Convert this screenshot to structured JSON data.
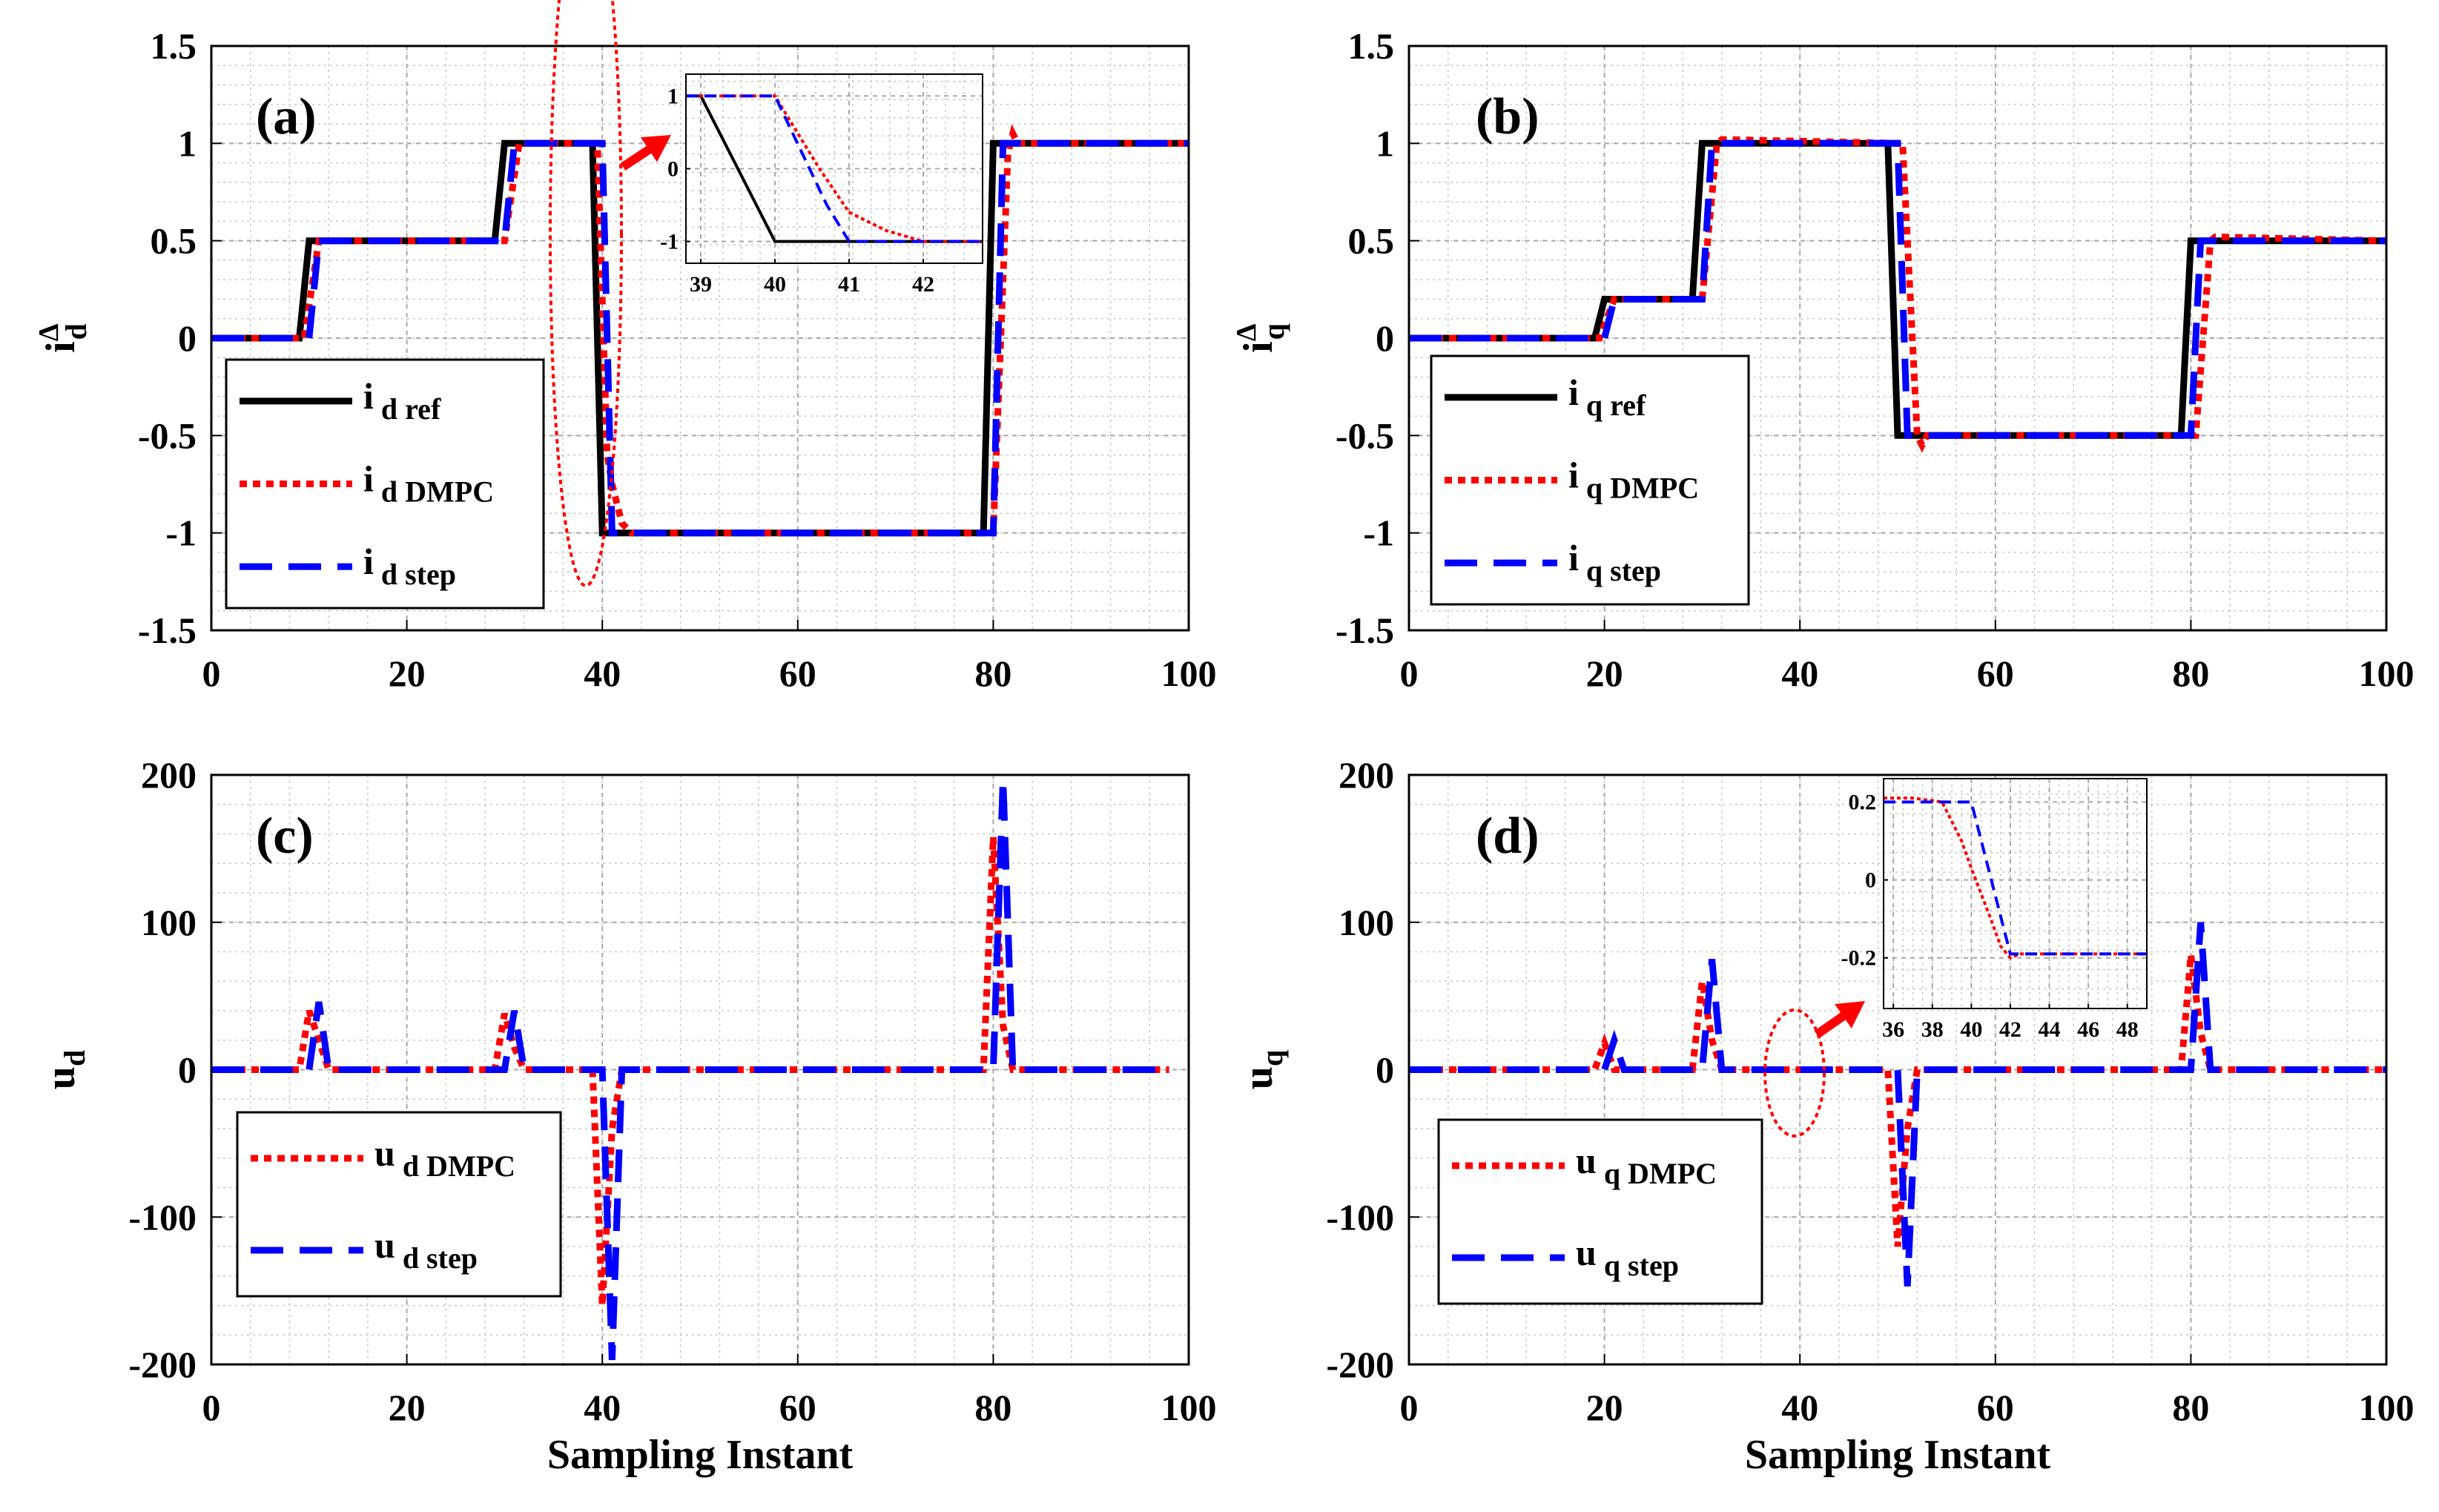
{
  "colors": {
    "ref": "#000000",
    "dmpc": "#ff0000",
    "step": "#0000ff",
    "arrow": "#ff0000"
  },
  "chart_data": [
    {
      "id": "a",
      "type": "line",
      "panel_label": "(a)",
      "xlabel": "",
      "ylabel": "i",
      "ylabel_sub": "d",
      "ylabel_sup": "Δ",
      "xlim": [
        0,
        100
      ],
      "ylim": [
        -1.5,
        1.5
      ],
      "xticks": [
        "0",
        "20",
        "40",
        "60",
        "80",
        "100"
      ],
      "yticks": [
        "-1.5",
        "-1",
        "-0.5",
        "0",
        "0.5",
        "1",
        "1.5"
      ],
      "legend": {
        "position": "bottom-left",
        "entries": [
          {
            "main": "i",
            "sub": "d ref",
            "series": "ref"
          },
          {
            "main": "i",
            "sub": "d DMPC",
            "series": "dmpc"
          },
          {
            "main": "i",
            "sub": "d step",
            "series": "step"
          }
        ]
      },
      "series": [
        {
          "name": "i_d ref",
          "style": "ref",
          "x": [
            0,
            9,
            10,
            29,
            30,
            39,
            40,
            79,
            80,
            100
          ],
          "y": [
            0,
            0,
            0.5,
            0.5,
            1,
            1,
            -1,
            -1,
            1,
            1
          ]
        },
        {
          "name": "i_d DMPC",
          "style": "dmpc",
          "x": [
            0,
            9.5,
            11,
            30,
            31.5,
            39.5,
            40.5,
            41,
            42,
            43,
            80,
            81.5,
            82,
            82.5,
            100
          ],
          "y": [
            0,
            0,
            0.5,
            0.5,
            1,
            1,
            -0.6,
            -0.75,
            -0.95,
            -1,
            -1,
            0.95,
            1.05,
            1,
            1
          ]
        },
        {
          "name": "i_d step",
          "style": "step",
          "x": [
            0,
            10,
            11,
            30,
            31,
            40,
            41,
            80,
            81,
            100
          ],
          "y": [
            0,
            0,
            0.5,
            0.5,
            1,
            1,
            -1,
            -1,
            1,
            1
          ]
        }
      ],
      "inset": {
        "xlim": [
          38.8,
          42.8
        ],
        "ylim": [
          -1.3,
          1.3
        ],
        "xticks": [
          "39",
          "40",
          "41",
          "42"
        ],
        "yticks": [
          "-1",
          "0",
          "1"
        ],
        "series": [
          {
            "name": "i_d ref",
            "style": "ref",
            "x": [
              38.8,
              39,
              40,
              42.8
            ],
            "y": [
              1,
              1,
              -1,
              -1
            ]
          },
          {
            "name": "i_d DMPC",
            "style": "dmpc",
            "x": [
              38.8,
              40,
              40.6,
              41,
              41.5,
              42,
              42.8
            ],
            "y": [
              1,
              1,
              0,
              -0.6,
              -0.85,
              -1,
              -1
            ]
          },
          {
            "name": "i_d step",
            "style": "step",
            "x": [
              38.8,
              40,
              40.7,
              41,
              42.8
            ],
            "y": [
              1,
              1,
              -0.5,
              -1,
              -1
            ]
          }
        ]
      }
    },
    {
      "id": "b",
      "type": "line",
      "panel_label": "(b)",
      "xlabel": "",
      "ylabel": "i",
      "ylabel_sub": "q",
      "ylabel_sup": "Δ",
      "xlim": [
        0,
        100
      ],
      "ylim": [
        -1.5,
        1.5
      ],
      "xticks": [
        "0",
        "20",
        "40",
        "60",
        "80",
        "100"
      ],
      "yticks": [
        "-1.5",
        "-1",
        "-0.5",
        "0",
        "0.5",
        "1",
        "1.5"
      ],
      "legend": {
        "position": "bottom-left",
        "entries": [
          {
            "main": "i",
            "sub": "q ref",
            "series": "ref"
          },
          {
            "main": "i",
            "sub": "q DMPC",
            "series": "dmpc"
          },
          {
            "main": "i",
            "sub": "q step",
            "series": "step"
          }
        ]
      },
      "series": [
        {
          "name": "i_q ref",
          "style": "ref",
          "x": [
            0,
            19,
            20,
            29,
            30,
            49,
            50,
            79,
            80,
            100
          ],
          "y": [
            0,
            0,
            0.2,
            0.2,
            1,
            1,
            -0.5,
            -0.5,
            0.5,
            0.5
          ]
        },
        {
          "name": "i_q DMPC",
          "style": "dmpc",
          "x": [
            0,
            19.5,
            21,
            30,
            31.5,
            32,
            50.5,
            52,
            52.5,
            53,
            80.5,
            82,
            82.5,
            100
          ],
          "y": [
            0,
            0,
            0.2,
            0.2,
            1,
            1.02,
            1,
            -0.5,
            -0.55,
            -0.5,
            -0.5,
            0.5,
            0.52,
            0.5
          ]
        },
        {
          "name": "i_q step",
          "style": "step",
          "x": [
            0,
            20,
            21,
            30,
            31,
            50,
            51,
            80,
            81,
            100
          ],
          "y": [
            0,
            0,
            0.2,
            0.2,
            1,
            1,
            -0.5,
            -0.5,
            0.5,
            0.5
          ]
        }
      ]
    },
    {
      "id": "c",
      "type": "line",
      "panel_label": "(c)",
      "xlabel": "Sampling Instant",
      "ylabel": "u",
      "ylabel_sub": "d",
      "xlim": [
        0,
        100
      ],
      "ylim": [
        -200,
        200
      ],
      "xticks": [
        "0",
        "20",
        "40",
        "60",
        "80",
        "100"
      ],
      "yticks": [
        "-200",
        "-100",
        "0",
        "100",
        "200"
      ],
      "legend": {
        "position": "bottom-left",
        "entries": [
          {
            "main": "u",
            "sub": "d DMPC",
            "series": "dmpc"
          },
          {
            "main": "u",
            "sub": "d step",
            "series": "step"
          }
        ]
      },
      "series": [
        {
          "name": "u_d DMPC",
          "style": "dmpc",
          "x": [
            0,
            9,
            10,
            11,
            12,
            29,
            30,
            31,
            32,
            39,
            40,
            41,
            42,
            79,
            80,
            81,
            82,
            98
          ],
          "y": [
            0,
            0,
            40,
            20,
            0,
            0,
            38,
            15,
            0,
            0,
            -160,
            -40,
            0,
            0,
            158,
            30,
            0,
            0
          ]
        },
        {
          "name": "u_d step",
          "style": "step",
          "x": [
            0,
            10,
            11,
            12,
            30,
            31,
            32,
            40,
            41,
            42,
            80,
            81,
            82,
            98
          ],
          "y": [
            0,
            0,
            46,
            0,
            0,
            40,
            0,
            0,
            -197,
            0,
            0,
            197,
            0,
            0
          ]
        }
      ]
    },
    {
      "id": "d",
      "type": "line",
      "panel_label": "(d)",
      "xlabel": "Sampling Instant",
      "ylabel": "u",
      "ylabel_sub": "q",
      "xlim": [
        0,
        100
      ],
      "ylim": [
        -200,
        200
      ],
      "xticks": [
        "0",
        "20",
        "40",
        "60",
        "80",
        "100"
      ],
      "yticks": [
        "-200",
        "-100",
        "0",
        "100",
        "200"
      ],
      "legend": {
        "position": "bottom-left",
        "entries": [
          {
            "main": "u",
            "sub": "q DMPC",
            "series": "dmpc"
          },
          {
            "main": "u",
            "sub": "q step",
            "series": "step"
          }
        ]
      },
      "series": [
        {
          "name": "u_q DMPC",
          "style": "dmpc",
          "x": [
            0,
            19,
            20,
            21,
            29,
            30,
            31,
            32,
            49,
            50,
            51,
            52,
            79,
            80,
            81,
            82,
            100
          ],
          "y": [
            0,
            0,
            18,
            0,
            0,
            60,
            20,
            0,
            0,
            -120,
            -40,
            0,
            0,
            78,
            25,
            0,
            0
          ]
        },
        {
          "name": "u_q step",
          "style": "step",
          "x": [
            0,
            20,
            21,
            22,
            30,
            31,
            32,
            50,
            51,
            52,
            80,
            81,
            82,
            100
          ],
          "y": [
            0,
            0,
            20,
            0,
            0,
            75,
            0,
            0,
            -147,
            0,
            0,
            100,
            0,
            0
          ]
        }
      ],
      "inset": {
        "xlim": [
          35.5,
          49
        ],
        "ylim": [
          -0.33,
          0.26
        ],
        "xticks": [
          "36",
          "38",
          "40",
          "42",
          "44",
          "46",
          "48"
        ],
        "yticks": [
          "-0.2",
          "0",
          "0.2"
        ],
        "series": [
          {
            "name": "u_q DMPC",
            "style": "dmpc",
            "x": [
              35.5,
              37,
              38.5,
              39.5,
              40,
              41,
              41.5,
              42,
              42.5,
              49
            ],
            "y": [
              0.21,
              0.21,
              0.2,
              0.1,
              0.03,
              -0.1,
              -0.17,
              -0.2,
              -0.19,
              -0.19
            ]
          },
          {
            "name": "u_q step",
            "style": "step",
            "x": [
              35.5,
              40,
              42,
              49
            ],
            "y": [
              0.2,
              0.2,
              -0.19,
              -0.19
            ]
          }
        ]
      }
    }
  ]
}
